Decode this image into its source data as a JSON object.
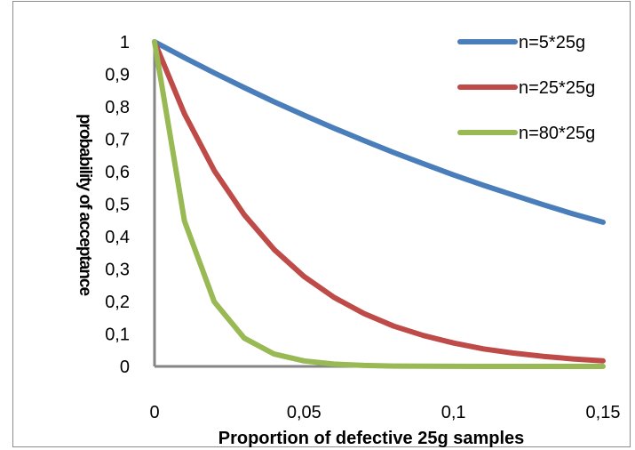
{
  "chart_data": {
    "type": "line",
    "xlabel": "Proportion of defective 25g samples",
    "ylabel": "probability of acceptance",
    "xlim": [
      0,
      0.15
    ],
    "ylim": [
      0,
      1
    ],
    "x_ticks": [
      "0",
      "0,05",
      "0,1",
      "0,15"
    ],
    "y_ticks": [
      "0",
      "0,1",
      "0,2",
      "0,3",
      "0,4",
      "0,5",
      "0,6",
      "0,7",
      "0,8",
      "0,9",
      "1"
    ],
    "grid": false,
    "legend_position": "top-right",
    "x": [
      0,
      0.01,
      0.02,
      0.03,
      0.04,
      0.05,
      0.06,
      0.07,
      0.08,
      0.09,
      0.1,
      0.11,
      0.12,
      0.13,
      0.14,
      0.15
    ],
    "series": [
      {
        "name": "n=5*25g",
        "color": "#4a7ebb",
        "values": [
          1.0,
          0.951,
          0.904,
          0.859,
          0.815,
          0.774,
          0.734,
          0.696,
          0.659,
          0.624,
          0.59,
          0.558,
          0.528,
          0.498,
          0.47,
          0.444
        ]
      },
      {
        "name": "n=25*25g",
        "color": "#be4b48",
        "values": [
          1.0,
          0.778,
          0.603,
          0.467,
          0.36,
          0.277,
          0.213,
          0.163,
          0.124,
          0.095,
          0.072,
          0.054,
          0.041,
          0.031,
          0.023,
          0.017
        ]
      },
      {
        "name": "n=80*25g",
        "color": "#98b954",
        "values": [
          1.0,
          0.448,
          0.199,
          0.087,
          0.038,
          0.017,
          0.007,
          0.003,
          0.001,
          0.0005,
          0.0002,
          0.0001,
          0.0,
          0.0,
          0.0,
          0.0
        ]
      }
    ]
  }
}
